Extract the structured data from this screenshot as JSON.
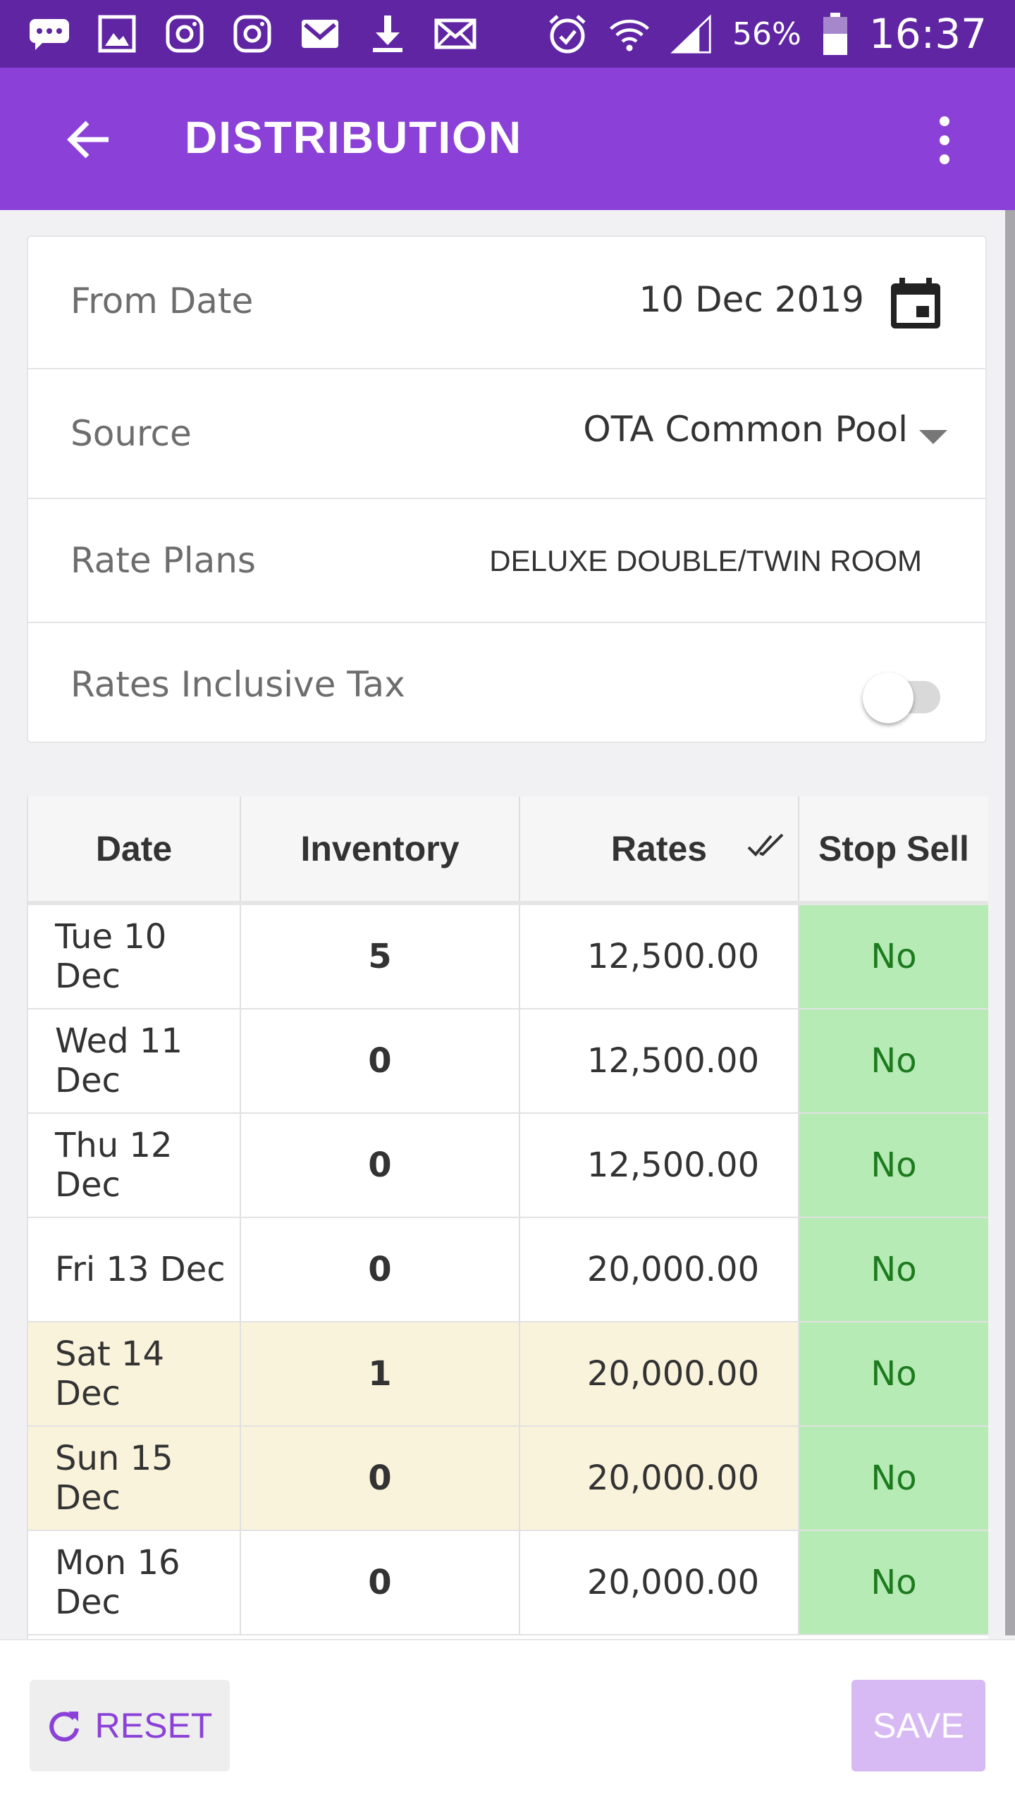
{
  "status_bar": {
    "battery": "56%",
    "time": "16:37",
    "icons": [
      "chat-icon",
      "image-icon",
      "instagram-icon",
      "instagram-icon",
      "gmail-icon",
      "download-icon",
      "mail-icon",
      "alarm-icon",
      "wifi-icon",
      "signal-icon",
      "battery-icon"
    ]
  },
  "app_bar": {
    "title": "DISTRIBUTION"
  },
  "form": {
    "from_date": {
      "label": "From Date",
      "value": "10 Dec 2019"
    },
    "source": {
      "label": "Source",
      "value": "OTA Common Pool"
    },
    "rate_plans": {
      "label": "Rate Plans",
      "value": "DELUXE DOUBLE/TWIN ROOM"
    },
    "rates_inclusive_tax": {
      "label": "Rates Inclusive Tax",
      "enabled": false
    }
  },
  "grid": {
    "headers": {
      "date": "Date",
      "inventory": "Inventory",
      "rates": "Rates",
      "stop_sell": "Stop Sell"
    },
    "rows": [
      {
        "date": "Tue 10 Dec",
        "inventory": "5",
        "rate": "12,500.00",
        "stop_sell": "No",
        "weekend": false
      },
      {
        "date": "Wed 11 Dec",
        "inventory": "0",
        "rate": "12,500.00",
        "stop_sell": "No",
        "weekend": false
      },
      {
        "date": "Thu 12 Dec",
        "inventory": "0",
        "rate": "12,500.00",
        "stop_sell": "No",
        "weekend": false
      },
      {
        "date": "Fri 13 Dec",
        "inventory": "0",
        "rate": "20,000.00",
        "stop_sell": "No",
        "weekend": false
      },
      {
        "date": "Sat 14 Dec",
        "inventory": "1",
        "rate": "20,000.00",
        "stop_sell": "No",
        "weekend": true
      },
      {
        "date": "Sun 15 Dec",
        "inventory": "0",
        "rate": "20,000.00",
        "stop_sell": "No",
        "weekend": true
      },
      {
        "date": "Mon 16 Dec",
        "inventory": "0",
        "rate": "20,000.00",
        "stop_sell": "No",
        "weekend": false
      }
    ]
  },
  "actions": {
    "reset_label": "RESET",
    "save_label": "SAVE"
  }
}
